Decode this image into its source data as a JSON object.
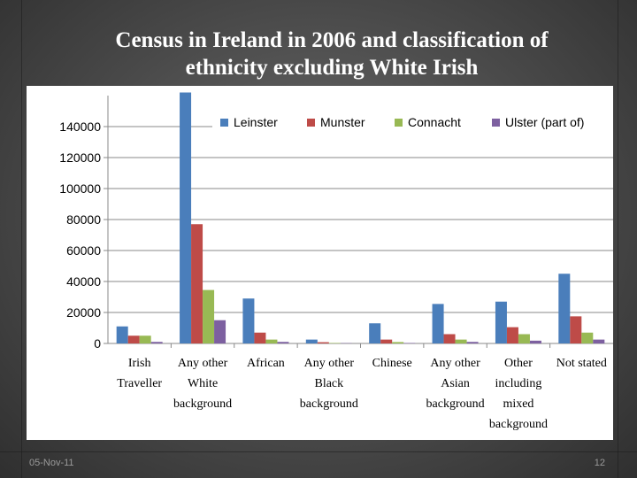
{
  "slide": {
    "title_line1": "Census in Ireland in 2006 and classification of",
    "title_line2": "ethnicity excluding White Irish",
    "date": "05-Nov-11",
    "page_number": "12"
  },
  "colors": {
    "Leinster": "#4a7ebb",
    "Munster": "#be4b48",
    "Connacht": "#98b954",
    "Ulster (part of)": "#7d60a0"
  },
  "chart_data": {
    "type": "bar",
    "title": "",
    "xlabel": "",
    "ylabel": "",
    "ylim": [
      0,
      160000
    ],
    "yticks": [
      0,
      20000,
      40000,
      60000,
      80000,
      100000,
      120000,
      140000
    ],
    "grid": true,
    "legend_position": "top-right",
    "categories": [
      [
        "Irish",
        "Traveller"
      ],
      [
        "Any other",
        "White",
        "background"
      ],
      [
        "African"
      ],
      [
        "Any other",
        "Black",
        "background"
      ],
      [
        "Chinese"
      ],
      [
        "Any other",
        "Asian",
        "background"
      ],
      [
        "Other",
        "including",
        "mixed",
        "background"
      ],
      [
        "Not stated"
      ]
    ],
    "series": [
      {
        "name": "Leinster",
        "values": [
          11000,
          162000,
          29000,
          2500,
          13000,
          25500,
          27000,
          45000
        ]
      },
      {
        "name": "Munster",
        "values": [
          5000,
          77000,
          7000,
          800,
          2500,
          6000,
          10500,
          17500
        ]
      },
      {
        "name": "Connacht",
        "values": [
          5000,
          34500,
          2500,
          300,
          900,
          2500,
          6000,
          7000
        ]
      },
      {
        "name": "Ulster (part of)",
        "values": [
          1000,
          15000,
          1000,
          200,
          300,
          1000,
          1800,
          2500
        ]
      }
    ]
  }
}
